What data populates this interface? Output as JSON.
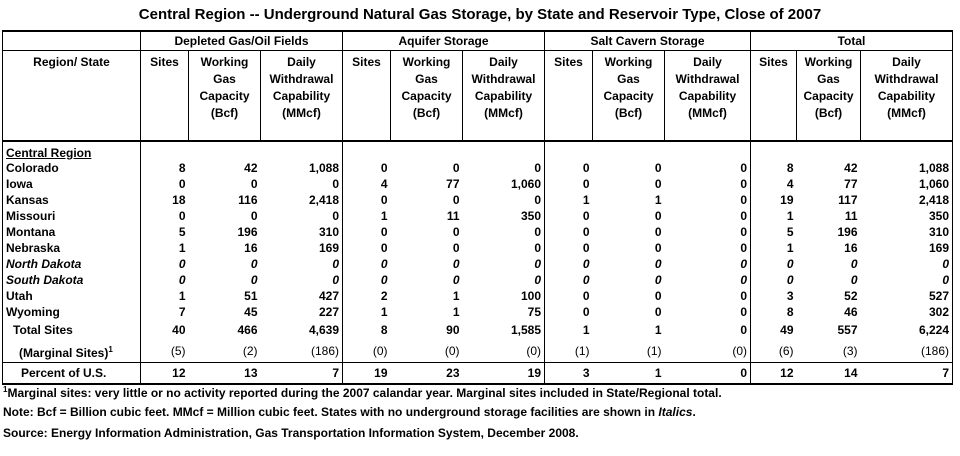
{
  "title": "Central Region -- Underground Natural Gas Storage, by State and Reservoir Type, Close of 2007",
  "group_headers": [
    "Depleted Gas/Oil Fields",
    "Aquifer Storage",
    "Salt Cavern Storage",
    "Total"
  ],
  "row_header": "Region/ State",
  "sub_headers": {
    "sites": "Sites",
    "working": [
      "Working",
      "Gas",
      "Capacity",
      "(Bcf)"
    ],
    "daily": [
      "Daily",
      "Withdrawal",
      "Capability",
      "(MMcf)"
    ]
  },
  "region_label": "Central Region",
  "rows": [
    {
      "state": "Colorado",
      "italic": false,
      "values": [
        "8",
        "42",
        "1,088",
        "0",
        "0",
        "0",
        "0",
        "0",
        "0",
        "8",
        "42",
        "1,088"
      ]
    },
    {
      "state": "Iowa",
      "italic": false,
      "values": [
        "0",
        "0",
        "0",
        "4",
        "77",
        "1,060",
        "0",
        "0",
        "0",
        "4",
        "77",
        "1,060"
      ]
    },
    {
      "state": "Kansas",
      "italic": false,
      "values": [
        "18",
        "116",
        "2,418",
        "0",
        "0",
        "0",
        "1",
        "1",
        "0",
        "19",
        "117",
        "2,418"
      ]
    },
    {
      "state": "Missouri",
      "italic": false,
      "values": [
        "0",
        "0",
        "0",
        "1",
        "11",
        "350",
        "0",
        "0",
        "0",
        "1",
        "11",
        "350"
      ]
    },
    {
      "state": "Montana",
      "italic": false,
      "values": [
        "5",
        "196",
        "310",
        "0",
        "0",
        "0",
        "0",
        "0",
        "0",
        "5",
        "196",
        "310"
      ]
    },
    {
      "state": "Nebraska",
      "italic": false,
      "values": [
        "1",
        "16",
        "169",
        "0",
        "0",
        "0",
        "0",
        "0",
        "0",
        "1",
        "16",
        "169"
      ]
    },
    {
      "state": "North Dakota",
      "italic": true,
      "values": [
        "0",
        "0",
        "0",
        "0",
        "0",
        "0",
        "0",
        "0",
        "0",
        "0",
        "0",
        "0"
      ]
    },
    {
      "state": "South Dakota",
      "italic": true,
      "values": [
        "0",
        "0",
        "0",
        "0",
        "0",
        "0",
        "0",
        "0",
        "0",
        "0",
        "0",
        "0"
      ]
    },
    {
      "state": "Utah",
      "italic": false,
      "values": [
        "1",
        "51",
        "427",
        "2",
        "1",
        "100",
        "0",
        "0",
        "0",
        "3",
        "52",
        "527"
      ]
    },
    {
      "state": "Wyoming",
      "italic": false,
      "values": [
        "7",
        "45",
        "227",
        "1",
        "1",
        "75",
        "0",
        "0",
        "0",
        "8",
        "46",
        "302"
      ]
    }
  ],
  "total_row": {
    "label": "Total Sites",
    "values": [
      "40",
      "466",
      "4,639",
      "8",
      "90",
      "1,585",
      "1",
      "1",
      "0",
      "49",
      "557",
      "6,224"
    ]
  },
  "marginal_row": {
    "label": "(Marginal Sites)",
    "footnote_mark": "1",
    "values": [
      "(5)",
      "(2)",
      "(186)",
      "(0)",
      "(0)",
      "(0)",
      "(1)",
      "(1)",
      "(0)",
      "(6)",
      "(3)",
      "(186)"
    ]
  },
  "percent_row": {
    "label": "Percent of U.S.",
    "values": [
      "12",
      "13",
      "7",
      "19",
      "23",
      "19",
      "3",
      "1",
      "0",
      "12",
      "14",
      "7"
    ]
  },
  "footnotes": {
    "marginal_mark": "1",
    "marginal": "Marginal sites: very little or no activity reported during the 2007 calandar year. Marginal sites included in State/Regional total.",
    "note_prefix": "Note: Bcf = Billion cubic feet.  MMcf = Million cubic feet. States with no underground storage facilities are shown in ",
    "note_italic": "Italics",
    "note_suffix": ".",
    "source": "Source:  Energy Information Administration, Gas Transportation Information System, December 2008."
  }
}
